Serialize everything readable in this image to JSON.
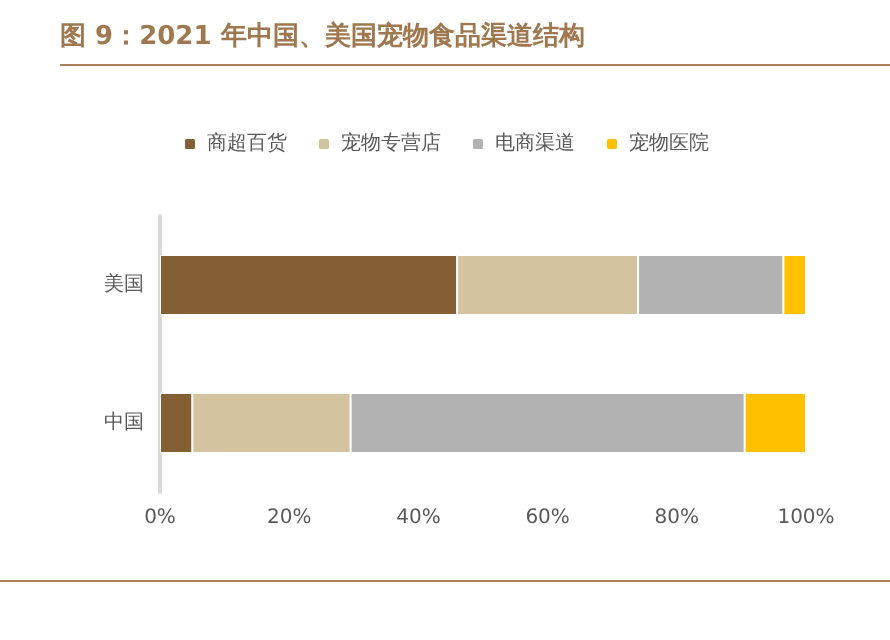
{
  "chart_data": {
    "type": "bar",
    "orientation": "horizontal",
    "stacked": true,
    "title": "图 9：2021 年中国、美国宠物食品渠道结构",
    "categories": [
      "美国",
      "中国"
    ],
    "series": [
      {
        "name": "商超百货",
        "color": "#835f33",
        "values": [
          46,
          5
        ]
      },
      {
        "name": "宠物专营店",
        "color": "#d3c39f",
        "values": [
          28,
          24.5
        ]
      },
      {
        "name": "电商渠道",
        "color": "#b2b2b2",
        "values": [
          22.5,
          61
        ]
      },
      {
        "name": "宠物医院",
        "color": "#ffc000",
        "values": [
          3.5,
          9.5
        ]
      }
    ],
    "xlim": [
      0,
      100
    ],
    "xticks": [
      {
        "value": 0,
        "label": "0%"
      },
      {
        "value": 20,
        "label": "20%"
      },
      {
        "value": 40,
        "label": "40%"
      },
      {
        "value": 60,
        "label": "60%"
      },
      {
        "value": 80,
        "label": "80%"
      },
      {
        "value": 100,
        "label": "100%"
      }
    ],
    "grid": false,
    "legend": "top"
  }
}
